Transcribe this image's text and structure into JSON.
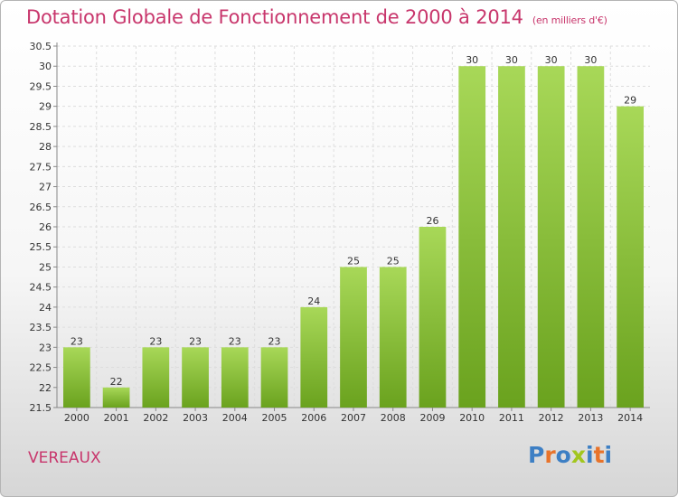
{
  "header": {
    "title": "Dotation Globale de Fonctionnement de 2000 à 2014",
    "subtitle": "(en milliers d'€)"
  },
  "footer": {
    "commune": "VEREAUX",
    "logo_text": "Proxiti"
  },
  "colors": {
    "title": "#c8366c",
    "bar_top": "#a8d858",
    "bar_bottom": "#6aa21e",
    "logo_letters": [
      "#3d7fc4",
      "#e8732a",
      "#3d7fc4",
      "#a2c61e",
      "#3d7fc4",
      "#e8732a",
      "#3d7fc4"
    ]
  },
  "chart_data": {
    "type": "bar",
    "title": "Dotation Globale de Fonctionnement de 2000 à 2014",
    "subtitle": "(en milliers d'€)",
    "xlabel": "",
    "ylabel": "",
    "categories": [
      "2000",
      "2001",
      "2002",
      "2003",
      "2004",
      "2005",
      "2006",
      "2007",
      "2008",
      "2009",
      "2010",
      "2011",
      "2012",
      "2013",
      "2014"
    ],
    "values": [
      23,
      22,
      23,
      23,
      23,
      23,
      24,
      25,
      25,
      26,
      30,
      30,
      30,
      30,
      29
    ],
    "data_labels": [
      "23",
      "22",
      "23",
      "23",
      "23",
      "23",
      "24",
      "25",
      "25",
      "26",
      "30",
      "30",
      "30",
      "30",
      "29"
    ],
    "ylim": [
      21.5,
      30.5
    ],
    "yticks": [
      "21.5",
      "22",
      "22.5",
      "23",
      "23.5",
      "24",
      "24.5",
      "25",
      "25.5",
      "26",
      "26.5",
      "27",
      "27.5",
      "28",
      "28.5",
      "29",
      "29.5",
      "30",
      "30.5"
    ],
    "grid": true,
    "legend": "none"
  }
}
